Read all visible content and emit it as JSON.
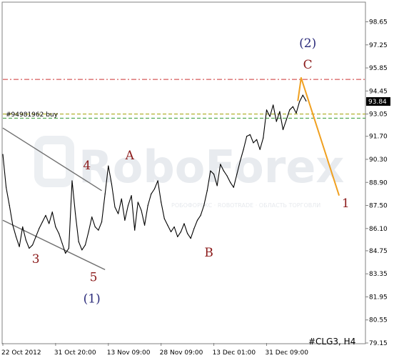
{
  "chart_data": {
    "type": "line",
    "symbol_label": "#CLG3, H4",
    "order_label": "#94981962 buy",
    "last_price": "93.84",
    "ylim": [
      79.15,
      99.8
    ],
    "y_ticks": [
      "98.65",
      "97.25",
      "95.85",
      "94.45",
      "93.05",
      "91.70",
      "90.30",
      "88.90",
      "87.50",
      "86.10",
      "84.75",
      "83.35",
      "81.95",
      "80.55",
      "79.15"
    ],
    "x_ticks": [
      "22 Oct 2012",
      "31 Oct 20:00",
      "13 Nov 09:00",
      "28 Nov 09:00",
      "13 Dec 01:00",
      "31 Dec 09:00"
    ],
    "x_tick_index": [
      0,
      16,
      32,
      48,
      64,
      80
    ],
    "series": [
      {
        "values": [
          90.6,
          88.6,
          87.5,
          86.3,
          85.6,
          85.0,
          86.2,
          85.4,
          84.9,
          85.1,
          85.6,
          86.1,
          86.5,
          86.9,
          86.4,
          87.1,
          86.2,
          85.8,
          85.2,
          84.6,
          84.9,
          89.0,
          87.0,
          85.3,
          84.8,
          85.1,
          85.9,
          86.8,
          86.2,
          86.0,
          86.5,
          88.2,
          89.9,
          88.8,
          87.4,
          87.0,
          87.9,
          86.6,
          87.5,
          88.1,
          86.0,
          87.7,
          87.2,
          86.3,
          87.5,
          88.2,
          88.5,
          89.0,
          87.7,
          86.7,
          86.3,
          85.9,
          86.2,
          85.6,
          85.9,
          86.4,
          85.8,
          85.5,
          86.1,
          86.6,
          86.9,
          87.5,
          88.4,
          89.6,
          89.4,
          88.7,
          90.0,
          89.6,
          89.3,
          88.9,
          88.6,
          89.4,
          90.2,
          90.9,
          91.7,
          91.8,
          91.3,
          91.5,
          90.9,
          91.6,
          93.3,
          92.9,
          93.6,
          92.6,
          93.2,
          92.1,
          92.7,
          93.3,
          93.5,
          93.1,
          93.8,
          94.2,
          93.84
        ],
        "color": "#000000"
      },
      {
        "values": [
          93.84,
          95.25,
          88.1
        ],
        "x": [
          89.5,
          90.5,
          102
        ],
        "color": "#f0a020"
      }
    ],
    "levels": [
      {
        "y": 95.15,
        "color": "#cc3333",
        "style": "dash-dot"
      },
      {
        "y": 93.05,
        "color": "#a0a000",
        "style": "dash"
      },
      {
        "y": 92.8,
        "color": "#339933",
        "style": "dash"
      }
    ],
    "channel_lines": [
      {
        "x": [
          0,
          30
        ],
        "y": [
          92.2,
          88.4
        ]
      },
      {
        "x": [
          0,
          31
        ],
        "y": [
          86.6,
          83.6
        ]
      }
    ],
    "wave_labels": [
      {
        "text": "4",
        "x": 25.5,
        "y": 89.7,
        "color": "#8b1a1a"
      },
      {
        "text": "A",
        "x": 38.5,
        "y": 90.3,
        "color": "#8b1a1a"
      },
      {
        "text": "3",
        "x": 10,
        "y": 84.0,
        "color": "#8b1a1a"
      },
      {
        "text": "5",
        "x": 27.5,
        "y": 82.9,
        "color": "#8b1a1a"
      },
      {
        "text": "(1)",
        "x": 27,
        "y": 81.6,
        "color": "#2a2a7a"
      },
      {
        "text": "B",
        "x": 62.5,
        "y": 84.4,
        "color": "#8b1a1a"
      },
      {
        "text": "(2)",
        "x": 92.5,
        "y": 97.1,
        "color": "#2a2a7a"
      },
      {
        "text": "C",
        "x": 92.5,
        "y": 95.8,
        "color": "#8b1a1a"
      },
      {
        "text": "1",
        "x": 104,
        "y": 87.4,
        "color": "#8b1a1a"
      }
    ],
    "watermark": {
      "brand": "RoboForex",
      "tagline": "РОБОФОРЕКС · ROBOTRADE · ОБЛАСТЬ ТОРГОВЛИ"
    },
    "grid": false,
    "legend": "none"
  }
}
